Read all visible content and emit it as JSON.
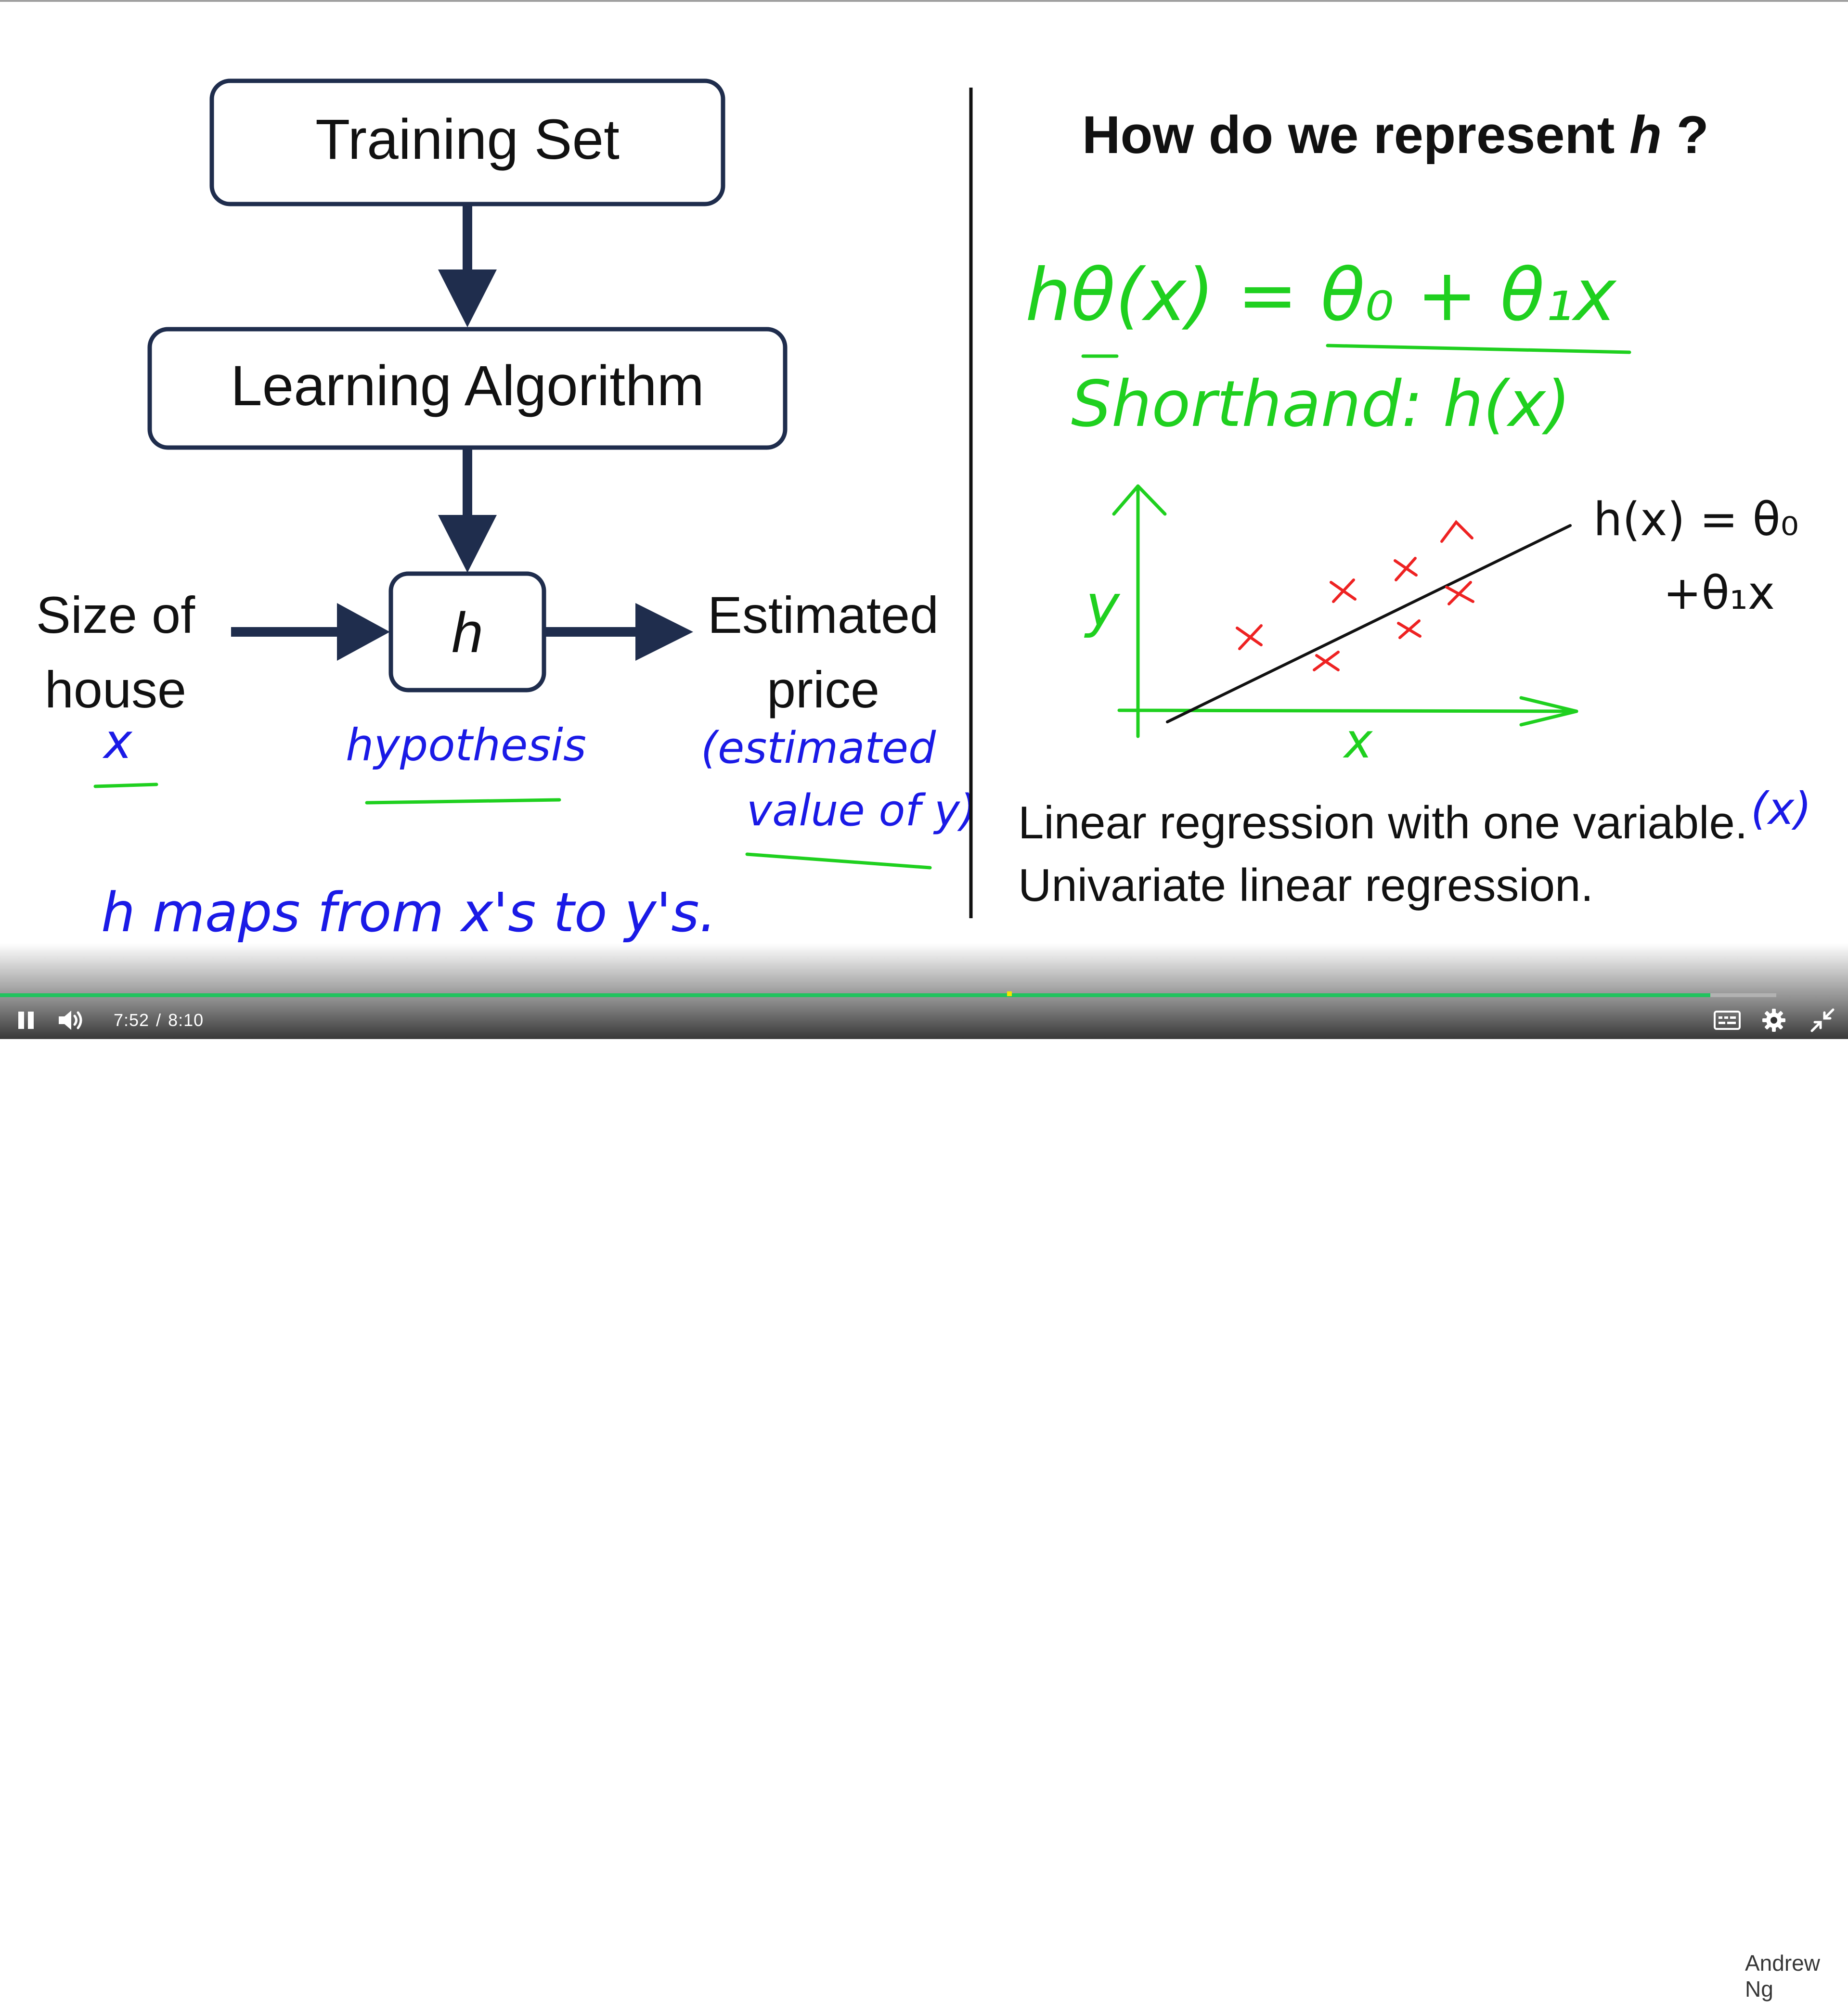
{
  "slide": {
    "flow": {
      "training_set": "Training Set",
      "learning_algorithm": "Learning Algorithm",
      "hypothesis_symbol": "h",
      "input_line1": "Size of",
      "input_line2": "house",
      "output_line1": "Estimated",
      "output_line2": "price"
    },
    "right_title_prefix": "How do we represent ",
    "right_title_symbol": "h",
    "right_title_suffix": " ?",
    "bottom_line1": "Linear regression with one variable.",
    "bottom_line2": "Univariate linear regression."
  },
  "handwriting": {
    "input_var": "x",
    "hypothesis_note": "hypothesis",
    "estimate_note_line1": "(estimated",
    "estimate_note_line2": "value of y)",
    "maps_note": "h   maps   from   x's   to   y's.",
    "equation": "hθ(x) = θ₀ + θ₁x",
    "shorthand": "Shorthand: h(x)",
    "axis_y": "y",
    "axis_x": "x",
    "line_label_1": "h(x) = θ₀",
    "line_label_2": "+θ₁x",
    "margin_note": "(x)"
  },
  "player": {
    "elapsed": "7:52",
    "separator": "/",
    "duration": "8:10",
    "progress_fraction": 0.963,
    "buffer_marker_fraction": 0.567,
    "watermark": "Andrew Ng",
    "icons": {
      "pause": "pause-icon",
      "volume": "volume-icon",
      "captions": "captions-icon",
      "settings": "gear-icon",
      "exit_fullscreen": "exit-fullscreen-icon"
    }
  },
  "colors": {
    "box_stroke": "#1f2d4d",
    "green_ink": "#1fd01f",
    "blue_ink": "#1a1ae6",
    "red_ink": "#ee2222",
    "progress": "#22c35e"
  }
}
